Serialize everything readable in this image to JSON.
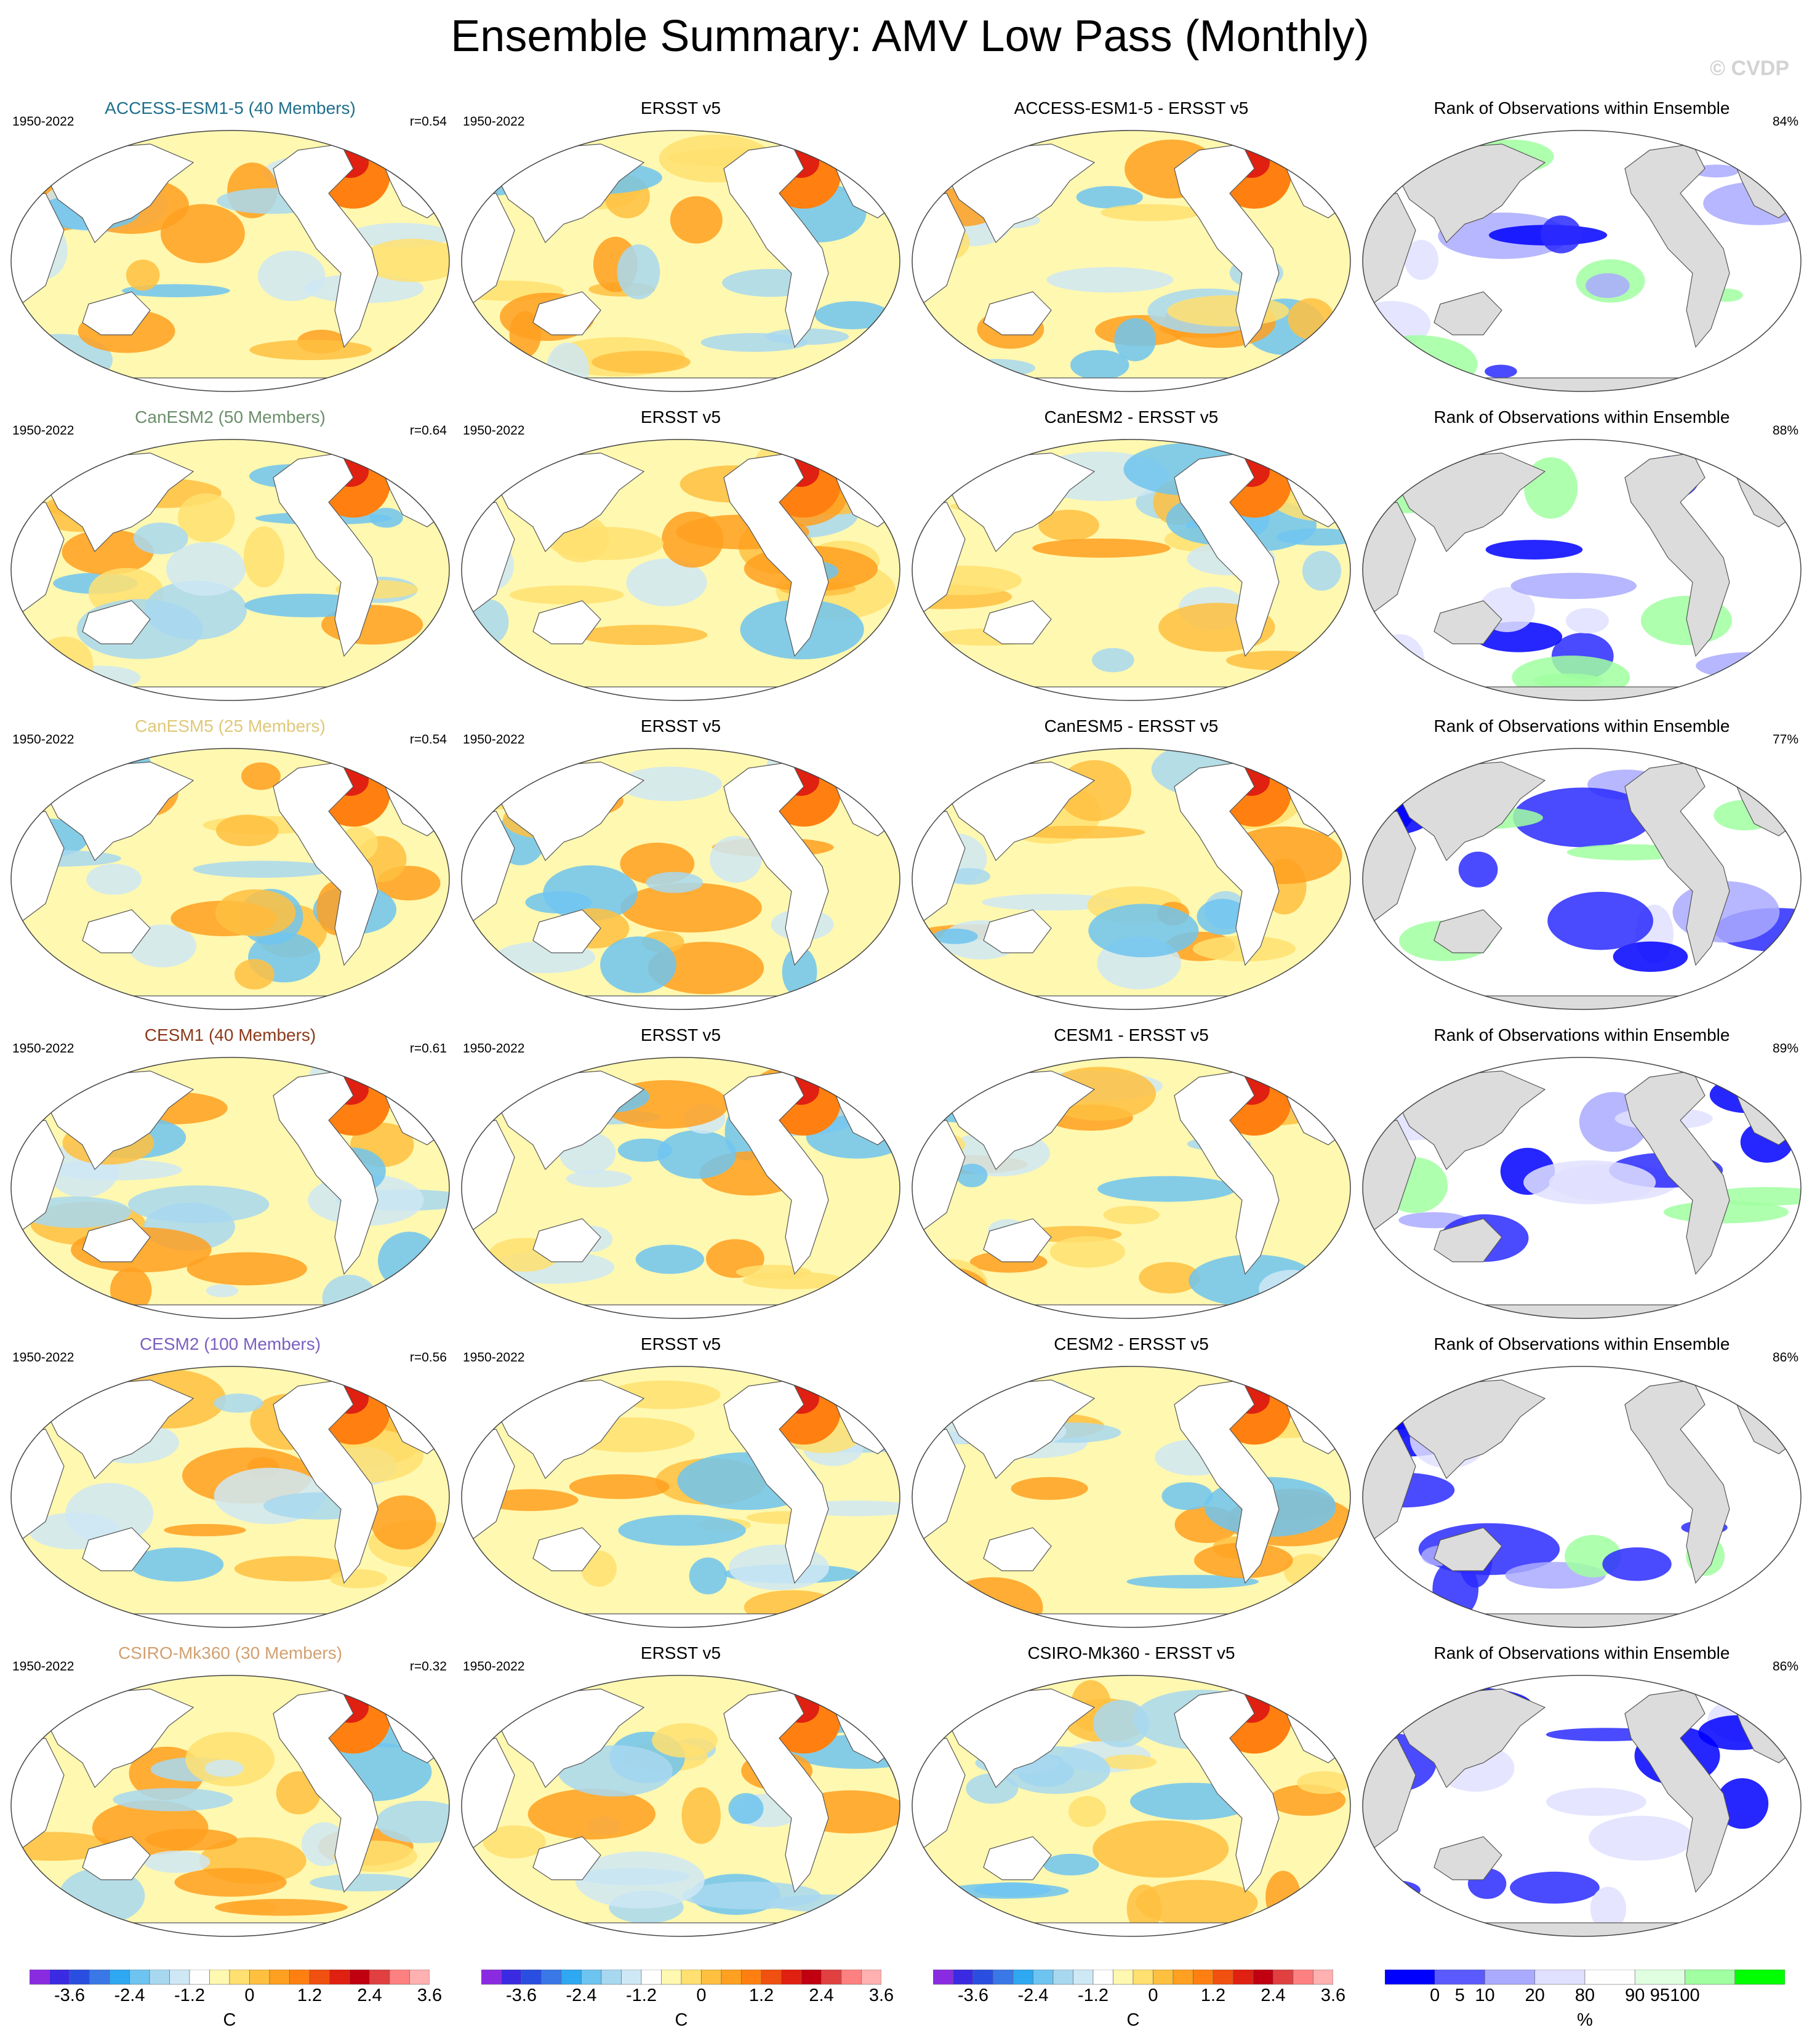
{
  "title": "Ensemble Summary: AMV Low Pass (Monthly)",
  "watermark": "© CVDP",
  "period": "1950-2022",
  "obs_title": "ERSST v5",
  "rank_title": "Rank of Observations within Ensemble",
  "models": [
    {
      "name": "ACCESS-ESM1-5 (40 Members)",
      "color": "#1f6f8b",
      "r": "r=0.54",
      "diff": "ACCESS-ESM1-5 - ERSST v5",
      "rank": "84%"
    },
    {
      "name": "CanESM2 (50 Members)",
      "color": "#6b8e6b",
      "r": "r=0.64",
      "diff": "CanESM2 - ERSST v5",
      "rank": "88%"
    },
    {
      "name": "CanESM5 (25 Members)",
      "color": "#e0c878",
      "r": "r=0.54",
      "diff": "CanESM5 - ERSST v5",
      "rank": "77%"
    },
    {
      "name": "CESM1 (40 Members)",
      "color": "#8b3a1a",
      "r": "r=0.61",
      "diff": "CESM1 - ERSST v5",
      "rank": "89%"
    },
    {
      "name": "CESM2 (100 Members)",
      "color": "#7b5fc0",
      "r": "r=0.56",
      "diff": "CESM2 - ERSST v5",
      "rank": "86%"
    },
    {
      "name": "CSIRO-Mk360 (30 Members)",
      "color": "#d2a070",
      "r": "r=0.32",
      "diff": "CSIRO-Mk360 - ERSST v5",
      "rank": "86%"
    }
  ],
  "colorbar_sst": {
    "colors": [
      "#8a2be2",
      "#3a2be2",
      "#2a4fe0",
      "#3a78e8",
      "#2ea8f0",
      "#6ec4f0",
      "#a8d8f0",
      "#cfe8f5",
      "#ffffff",
      "#fff8b0",
      "#ffe070",
      "#ffc040",
      "#ffa020",
      "#ff8010",
      "#f05010",
      "#e02010",
      "#c00010",
      "#e04040",
      "#ff8080",
      "#ffb0b0"
    ],
    "ticks": [
      "-3.6",
      "-2.4",
      "-1.2",
      "0",
      "1.2",
      "2.4",
      "3.6"
    ],
    "unit": "C"
  },
  "colorbar_rank": {
    "colors": [
      "#0000ff",
      "#5a5aff",
      "#aaaaff",
      "#e0e0ff",
      "#ffffff",
      "#e0ffe0",
      "#a0ffa0",
      "#00ff00"
    ],
    "ticks": [
      "0",
      "5",
      "10",
      "20",
      "80",
      "90",
      "95",
      "100"
    ],
    "unit": "%"
  }
}
